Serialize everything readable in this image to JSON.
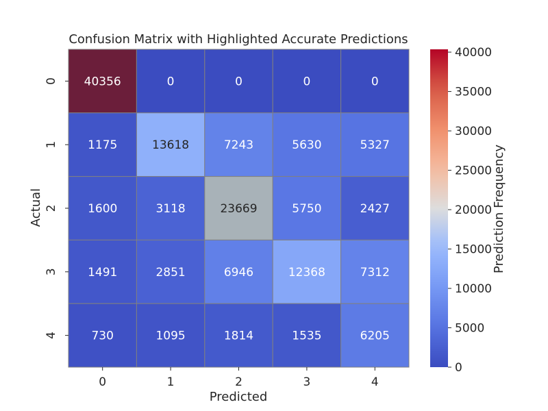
{
  "chart_data": {
    "type": "heatmap",
    "title": "Confusion Matrix with Highlighted Accurate Predictions",
    "xlabel": "Predicted",
    "ylabel": "Actual",
    "x_categories": [
      "0",
      "1",
      "2",
      "3",
      "4"
    ],
    "y_categories": [
      "0",
      "1",
      "2",
      "3",
      "4"
    ],
    "values": [
      [
        40356,
        0,
        0,
        0,
        0
      ],
      [
        1175,
        13618,
        7243,
        5630,
        5327
      ],
      [
        1600,
        3118,
        23669,
        5750,
        2427
      ],
      [
        1491,
        2851,
        6946,
        12368,
        7312
      ],
      [
        730,
        1095,
        1814,
        1535,
        6205
      ]
    ],
    "highlighted_diagonal": {
      "cells": [
        [
          0,
          0
        ],
        [
          2,
          2
        ]
      ],
      "colors": [
        "#6b1e3a",
        "#a8b2b8"
      ]
    },
    "colormap": "coolwarm",
    "colorbar": {
      "label": "Prediction Frequency",
      "min": 0,
      "max": 40356,
      "ticks": [
        0,
        5000,
        10000,
        15000,
        20000,
        25000,
        30000,
        35000,
        40000
      ]
    },
    "grid_line_color": "#808080"
  }
}
